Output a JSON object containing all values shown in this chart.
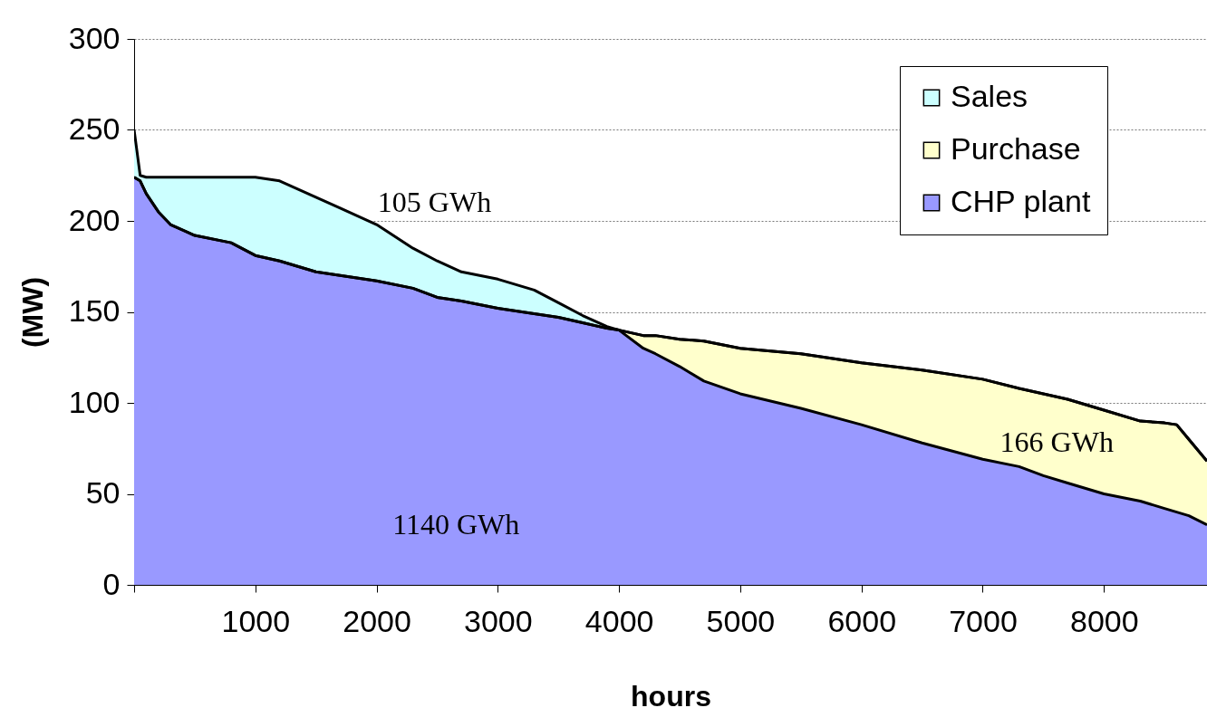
{
  "chart_data": {
    "type": "area",
    "stacked": true,
    "xlabel": "hours",
    "ylabel": "(MW)",
    "x": [
      0,
      50,
      100,
      200,
      300,
      500,
      800,
      1000,
      1200,
      1500,
      1700,
      2000,
      2300,
      2500,
      2700,
      3000,
      3300,
      3500,
      3700,
      3900,
      4000,
      4200,
      4300,
      4500,
      4700,
      5000,
      5500,
      6000,
      6500,
      7000,
      7300,
      7500,
      7700,
      8000,
      8300,
      8500,
      8600,
      8700,
      8850
    ],
    "series": [
      {
        "name": "CHP plant",
        "color": "#9999ff",
        "values": [
          224,
          222,
          215,
          205,
          198,
          192,
          188,
          181,
          178,
          172,
          170,
          167,
          163,
          158,
          156,
          152,
          149,
          147,
          144,
          141,
          140,
          130,
          127,
          120,
          112,
          105,
          97,
          88,
          78,
          69,
          65,
          60,
          56,
          50,
          46,
          42,
          40,
          38,
          33
        ]
      },
      {
        "name": "Purchase",
        "color": "#ffffcc",
        "values": [
          0,
          0,
          0,
          0,
          0,
          0,
          0,
          0,
          0,
          0,
          0,
          0,
          0,
          0,
          0,
          0,
          0,
          0,
          0,
          0,
          0,
          7,
          10,
          15,
          22,
          25,
          30,
          34,
          40,
          44,
          43,
          45,
          46,
          46,
          44,
          47,
          48,
          42,
          35
        ]
      },
      {
        "name": "Sales",
        "color": "#ccffff",
        "values": [
          26,
          3,
          9,
          19,
          26,
          32,
          36,
          43,
          44,
          41,
          37,
          31,
          22,
          20,
          16,
          16,
          13,
          8,
          4,
          1,
          0,
          0,
          0,
          0,
          0,
          0,
          0,
          0,
          0,
          0,
          0,
          0,
          0,
          0,
          0,
          0,
          0,
          0,
          0
        ]
      }
    ],
    "xlim": [
      0,
      8850
    ],
    "xticks": [
      {
        "value": 0,
        "label": null
      },
      1000,
      2000,
      3000,
      4000,
      5000,
      6000,
      7000,
      8000
    ],
    "ylim": [
      0,
      300
    ],
    "yticks": [
      0,
      50,
      100,
      150,
      200,
      250,
      300
    ],
    "grid": "y",
    "legend": "top right",
    "annotations": [
      "105 GWh",
      "1140 GWh",
      "166 GWh"
    ]
  }
}
